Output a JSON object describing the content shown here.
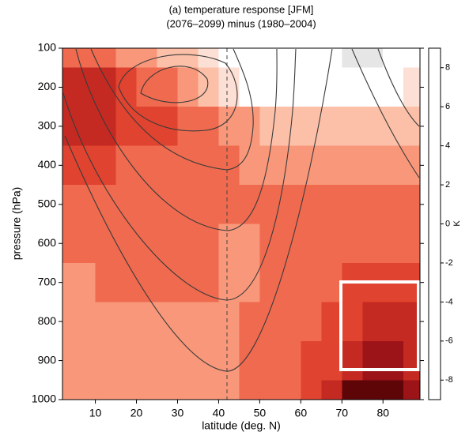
{
  "chart_data": {
    "type": "contourf",
    "title": "(a) temperature response [JFM]",
    "subtitle": "(2076–2099) minus (1980–2004)",
    "x_label": "latitude (deg. N)",
    "y_label": "pressure (hPa)",
    "x": [
      2.5,
      7.5,
      12.5,
      17.5,
      22.5,
      27.5,
      32.5,
      37.5,
      42.5,
      47.5,
      52.5,
      57.5,
      62.5,
      67.5,
      72.5,
      77.5,
      82.5,
      87.5
    ],
    "y": [
      100,
      200,
      300,
      400,
      500,
      600,
      700,
      800,
      900,
      1000
    ],
    "z": [
      [
        4.5,
        4.5,
        4.5,
        3.5,
        3.5,
        2.5,
        2.5,
        1.5,
        0.5,
        0.5,
        0.5,
        0.5,
        0.5,
        0.5,
        -0.5,
        -0.5,
        0.5,
        0.5
      ],
      [
        6.5,
        6.5,
        6.5,
        5.5,
        4.5,
        4.5,
        3.5,
        2.5,
        1.5,
        0.5,
        0.5,
        0.5,
        0.5,
        0.5,
        0.5,
        0.5,
        0.5,
        1.5
      ],
      [
        6.5,
        6.5,
        6.5,
        5.5,
        5.5,
        5.5,
        4.5,
        4.5,
        3.5,
        3.5,
        2.5,
        2.5,
        2.5,
        2.5,
        2.5,
        2.5,
        2.5,
        2.5
      ],
      [
        5.5,
        5.5,
        5.5,
        4.5,
        4.5,
        4.5,
        4.5,
        4.5,
        4.5,
        3.5,
        3.5,
        3.5,
        3.5,
        3.5,
        3.5,
        3.5,
        3.5,
        3.5
      ],
      [
        4.5,
        4.5,
        4.5,
        4.5,
        4.5,
        4.5,
        4.5,
        4.5,
        4.5,
        4.5,
        4.5,
        4.5,
        4.5,
        4.5,
        4.5,
        4.5,
        4.5,
        4.5
      ],
      [
        4.5,
        4.5,
        4.5,
        4.5,
        4.5,
        4.5,
        4.5,
        4.5,
        3.5,
        3.5,
        4.5,
        4.5,
        4.5,
        4.5,
        4.5,
        4.5,
        4.5,
        4.5
      ],
      [
        3.5,
        3.5,
        4.5,
        4.5,
        4.5,
        4.5,
        4.5,
        4.5,
        3.5,
        3.5,
        4.5,
        4.5,
        4.5,
        4.5,
        5.5,
        5.5,
        5.5,
        5.5
      ],
      [
        3.5,
        3.5,
        3.5,
        3.5,
        3.5,
        3.5,
        3.5,
        3.5,
        3.5,
        4.5,
        4.5,
        4.5,
        4.5,
        5.5,
        5.5,
        6.5,
        6.5,
        6.5
      ],
      [
        3.5,
        3.5,
        3.5,
        3.5,
        3.5,
        3.5,
        3.5,
        3.5,
        3.5,
        4.5,
        4.5,
        4.5,
        5.5,
        5.5,
        6.5,
        7.5,
        7.5,
        6.5
      ],
      [
        3.5,
        3.5,
        3.5,
        3.5,
        3.5,
        3.5,
        3.5,
        3.5,
        3.5,
        4.5,
        4.5,
        4.5,
        5.5,
        6.5,
        8.5,
        8.5,
        8.5,
        7.5
      ]
    ],
    "levels": [
      -1,
      0,
      1,
      2,
      3,
      4,
      5,
      6,
      7,
      8,
      9
    ],
    "colors": [
      "#e6e6e6",
      "#ffffff",
      "#fde0d5",
      "#fcc0a8",
      "#f8977a",
      "#ef6a4f",
      "#e0432f",
      "#c42a22",
      "#9c1318",
      "#5e0508"
    ],
    "xlim": [
      2,
      89
    ],
    "ylim": [
      1000,
      100
    ],
    "xticks": [
      10,
      20,
      30,
      40,
      50,
      60,
      70,
      80
    ],
    "yticks": [
      100,
      200,
      300,
      400,
      500,
      600,
      700,
      800,
      900,
      1000
    ],
    "colorbar": {
      "label": "K",
      "lim": [
        -9,
        9
      ],
      "ticks": [
        -8,
        -6,
        -4,
        -2,
        0,
        2,
        4,
        6,
        8
      ]
    }
  }
}
